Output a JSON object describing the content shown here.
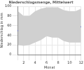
{
  "chart_data": {
    "type": "line",
    "title": "Niederschlagsmenge, Mittelwert",
    "x_label": "Monat",
    "y_label": "Niederschlag in mm",
    "categories": [
      null,
      "2",
      null,
      "4",
      null,
      "6",
      null,
      "8",
      null,
      "10",
      null,
      "12"
    ],
    "series": [
      {
        "color": "#d0d0d0",
        "values": [
          20,
          18,
          20,
          25,
          30,
          38,
          35,
          35,
          28,
          25,
          25,
          25
        ]
      },
      {
        "color": "#d0d0d0",
        "values": [
          90,
          80,
          80,
          90,
          95,
          98,
          98,
          98,
          92,
          90,
          90,
          95
        ]
      },
      {
        "color": "#1f2fd0",
        "values": [
          50,
          45,
          45,
          52,
          62,
          75,
          70,
          72,
          60,
          55,
          52,
          58
        ]
      }
    ],
    "ylim": [
      0,
      100
    ],
    "yticks": [
      0,
      20,
      40,
      60,
      80,
      100
    ],
    "grid": true
  }
}
